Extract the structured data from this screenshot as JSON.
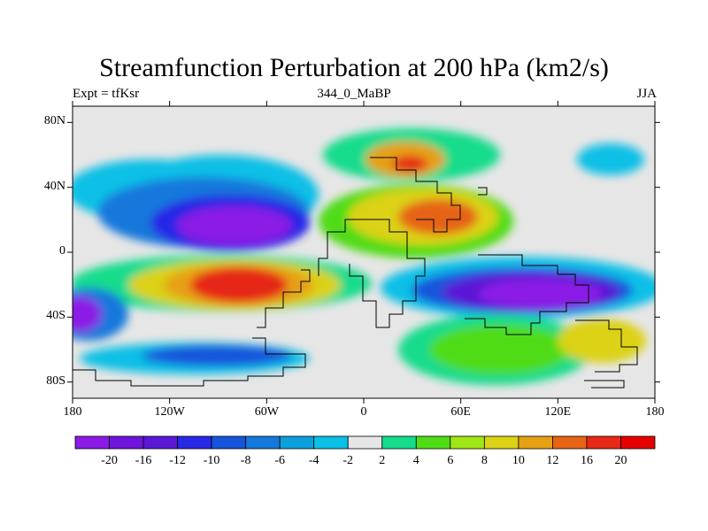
{
  "title": "Streamfunction Perturbation at 200 hPa (km2/s)",
  "subtitle_left": "Expt = tfKsr",
  "subtitle_center": "344_0_MaBP",
  "subtitle_right": "JJA",
  "map_data": {
    "type": "contour-map",
    "variable": "streamfunction perturbation",
    "level": "200 hPa",
    "units": "km2/s",
    "lon_range": [
      -180,
      180
    ],
    "lat_range": [
      -90,
      90
    ],
    "x_ticks": [
      {
        "value": -180,
        "label": "180"
      },
      {
        "value": -120,
        "label": "120W"
      },
      {
        "value": -60,
        "label": "60W"
      },
      {
        "value": 0,
        "label": "0"
      },
      {
        "value": 60,
        "label": "60E"
      },
      {
        "value": 120,
        "label": "120E"
      },
      {
        "value": 180,
        "label": "180"
      }
    ],
    "y_ticks": [
      {
        "value": 80,
        "label": "80N"
      },
      {
        "value": 40,
        "label": "40N"
      },
      {
        "value": 0,
        "label": "0"
      },
      {
        "value": -40,
        "label": "40S"
      },
      {
        "value": -80,
        "label": "80S"
      }
    ],
    "features": [
      {
        "type": "low",
        "lon": -98,
        "lat": 18,
        "value": -20
      },
      {
        "type": "high",
        "lon": -68,
        "lat": -17,
        "value": 20
      },
      {
        "type": "high",
        "lon": 48,
        "lat": 22,
        "value": 16
      },
      {
        "type": "high",
        "lon": 28,
        "lat": 55,
        "value": 14
      },
      {
        "type": "low",
        "lon": 88,
        "lat": -22,
        "value": -20
      },
      {
        "type": "low",
        "lon": -175,
        "lat": -37,
        "value": -16
      },
      {
        "type": "low",
        "lon": -92,
        "lat": -65,
        "value": -10
      },
      {
        "type": "high",
        "lon": 92,
        "lat": -62,
        "value": 7
      },
      {
        "type": "high",
        "lon": 150,
        "lat": -55,
        "value": 10
      }
    ]
  },
  "legend": {
    "levels": [
      "-20",
      "-16",
      "-12",
      "-10",
      "-8",
      "-6",
      "-4",
      "-2",
      "2",
      "4",
      "6",
      "8",
      "10",
      "12",
      "16",
      "20"
    ],
    "colors": [
      "#8a1ae6",
      "#6e14dc",
      "#5a18d6",
      "#2828e6",
      "#1455dc",
      "#1478dc",
      "#0aa0dc",
      "#0ac0e6",
      "#e6e6e6",
      "#14dc8c",
      "#50dc14",
      "#a0e614",
      "#dcd214",
      "#e6a014",
      "#e66414",
      "#e62814",
      "#e60000"
    ]
  }
}
